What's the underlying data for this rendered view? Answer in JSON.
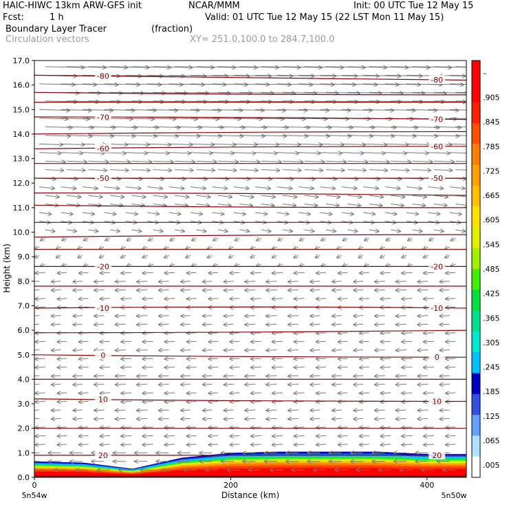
{
  "header": {
    "title_left": "HAIC-HIWC 13km ARW-GFS init",
    "title_org": "NCAR/MMM",
    "init": "Init: 00 UTC Tue 12 May 15",
    "fcst_label": "Fcst:",
    "fcst_value": "1 h",
    "valid": "Valid: 01 UTC Tue 12 May 15 (22 LST Mon 11 May 15)",
    "field1": "Boundary Layer Tracer",
    "field1_units": "(fraction)",
    "field2": "Circulation vectors",
    "xy": "XY= 251.0,100.0 to 284.7,100.0"
  },
  "chart_data": {
    "type": "heatmap",
    "xlabel": "Distance (km)",
    "ylabel": "Height (km)",
    "xlim": [
      0,
      440
    ],
    "ylim": [
      0,
      17
    ],
    "x_ticks": [
      0,
      200,
      400
    ],
    "y_ticks": [
      "0.0",
      "1.0",
      "2.0",
      "3.0",
      "4.0",
      "5.0",
      "6.0",
      "7.0",
      "8.0",
      "9.0",
      "10.0",
      "11.0",
      "12.0",
      "13.0",
      "14.0",
      "15.0",
      "16.0",
      "17.0"
    ],
    "x_endpoints": {
      "left": "5n54w",
      "right": "5n50w"
    },
    "colorbar": {
      "labels": [
        ".005",
        ".065",
        ".125",
        ".185",
        ".245",
        ".305",
        ".365",
        ".425",
        ".485",
        ".545",
        ".605",
        ".665",
        ".725",
        ".785",
        ".845",
        ".905",
        "–"
      ],
      "colors": [
        "#ffffff",
        "#b0e0ff",
        "#60a0ff",
        "#3050e0",
        "#0000c0",
        "#00c0ff",
        "#00e8d0",
        "#00e090",
        "#00e040",
        "#40f000",
        "#a0f000",
        "#e0f000",
        "#ffe000",
        "#ffc000",
        "#ffa000",
        "#ff8000",
        "#ff5000",
        "#ff2000",
        "#ff0000",
        "#ff0000"
      ]
    },
    "temperature_contours": [
      {
        "label": "-80",
        "heights": [
          16.4,
          16.3,
          16.2
        ]
      },
      {
        "label": null,
        "heights": [
          15.7,
          15.6,
          15.6
        ]
      },
      {
        "label": null,
        "heights": [
          15.3,
          15.3,
          15.3
        ]
      },
      {
        "label": "-70",
        "heights": [
          14.7,
          14.7,
          14.6
        ]
      },
      {
        "label": null,
        "heights": [
          14.0,
          14.1,
          14.1
        ]
      },
      {
        "label": "-60",
        "heights": [
          13.4,
          13.5,
          13.5
        ]
      },
      {
        "label": null,
        "heights": [
          12.8,
          12.8,
          12.8
        ]
      },
      {
        "label": "-50",
        "heights": [
          12.2,
          12.2,
          12.2
        ]
      },
      {
        "label": null,
        "heights": [
          11.6,
          11.6,
          11.5
        ]
      },
      {
        "label": null,
        "heights": [
          11.1,
          11.0,
          11.0
        ]
      },
      {
        "label": null,
        "heights": [
          10.4,
          10.4,
          10.4
        ]
      },
      {
        "label": null,
        "heights": [
          9.8,
          9.9,
          9.9
        ]
      },
      {
        "label": null,
        "heights": [
          9.3,
          9.3,
          9.3
        ]
      },
      {
        "label": "-20",
        "heights": [
          8.6,
          8.6,
          8.6
        ]
      },
      {
        "label": null,
        "heights": [
          7.8,
          7.8,
          7.8
        ]
      },
      {
        "label": "-10",
        "heights": [
          6.9,
          7.0,
          6.9
        ]
      },
      {
        "label": null,
        "heights": [
          5.9,
          5.9,
          6.0
        ]
      },
      {
        "label": "0",
        "heights": [
          5.0,
          4.9,
          4.9
        ]
      },
      {
        "label": null,
        "heights": [
          4.0,
          4.0,
          4.0
        ]
      },
      {
        "label": "10",
        "heights": [
          3.2,
          3.1,
          3.1
        ]
      },
      {
        "label": null,
        "heights": [
          2.0,
          2.0,
          2.0
        ]
      },
      {
        "label": "20",
        "heights": [
          0.9,
          0.9,
          0.9
        ]
      }
    ],
    "tracer_top_km": [
      [
        0,
        0.65
      ],
      [
        50,
        0.6
      ],
      [
        100,
        0.35
      ],
      [
        150,
        0.8
      ],
      [
        200,
        1.0
      ],
      [
        250,
        1.05
      ],
      [
        300,
        1.05
      ],
      [
        350,
        1.05
      ],
      [
        400,
        0.95
      ],
      [
        440,
        0.95
      ]
    ]
  }
}
